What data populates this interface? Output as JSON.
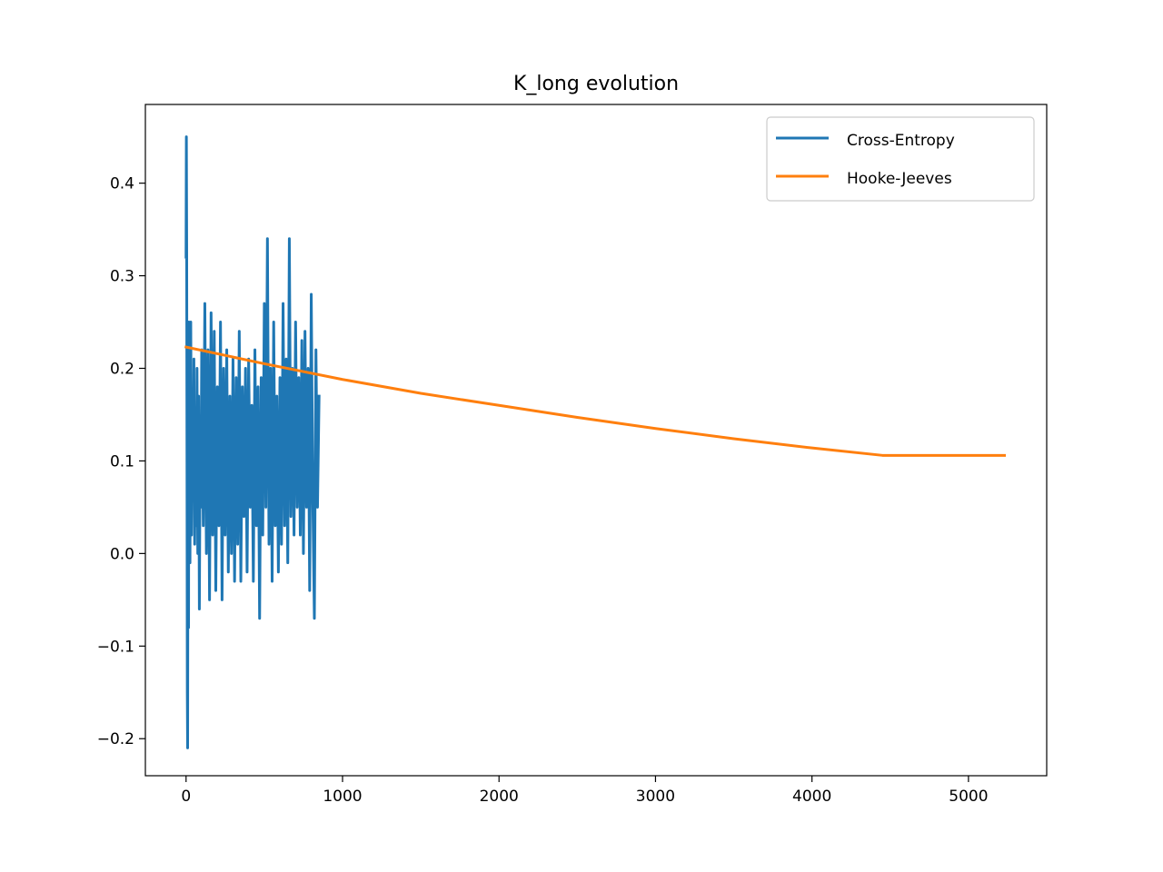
{
  "chart_data": {
    "type": "line",
    "title": "K_long evolution",
    "xlabel": "",
    "ylabel": "",
    "xlim": [
      -260,
      5500
    ],
    "ylim": [
      -0.24,
      0.485
    ],
    "x_ticks": [
      0,
      1000,
      2000,
      3000,
      4000,
      5000
    ],
    "y_ticks": [
      -0.2,
      -0.1,
      0.0,
      0.1,
      0.2,
      0.3,
      0.4
    ],
    "x_tick_labels": [
      "0",
      "1000",
      "2000",
      "3000",
      "4000",
      "5000"
    ],
    "y_tick_labels": [
      "−0.2",
      "−0.1",
      "0.0",
      "0.1",
      "0.2",
      "0.3",
      "0.4"
    ],
    "grid": false,
    "legend_position": "top-right",
    "series": [
      {
        "name": "Cross-Entropy",
        "color": "#1f77b4",
        "x": [
          0,
          2,
          4,
          6,
          8,
          10,
          12,
          14,
          16,
          18,
          20,
          25,
          30,
          35,
          40,
          45,
          50,
          55,
          60,
          65,
          70,
          75,
          80,
          85,
          90,
          95,
          100,
          110,
          120,
          130,
          140,
          150,
          160,
          170,
          180,
          190,
          200,
          210,
          220,
          230,
          240,
          250,
          260,
          270,
          280,
          290,
          300,
          310,
          320,
          330,
          340,
          350,
          360,
          370,
          380,
          390,
          400,
          410,
          420,
          430,
          440,
          450,
          460,
          470,
          480,
          490,
          500,
          510,
          520,
          530,
          540,
          550,
          560,
          570,
          580,
          590,
          600,
          610,
          620,
          630,
          640,
          650,
          660,
          670,
          680,
          690,
          700,
          710,
          720,
          730,
          740,
          750,
          760,
          770,
          780,
          790,
          800,
          810,
          820,
          830,
          840,
          850
        ],
        "y": [
          0.32,
          0.45,
          0.33,
          0.1,
          -0.15,
          -0.21,
          0.05,
          0.2,
          -0.08,
          0.25,
          0.1,
          -0.01,
          0.25,
          0.02,
          0.15,
          0.06,
          0.21,
          0.01,
          0.13,
          0.03,
          0.2,
          0.0,
          0.17,
          -0.06,
          0.12,
          0.05,
          0.22,
          0.03,
          0.27,
          0.0,
          0.22,
          -0.05,
          0.26,
          0.02,
          0.24,
          -0.04,
          0.18,
          0.03,
          0.25,
          -0.05,
          0.2,
          0.02,
          0.22,
          -0.02,
          0.17,
          0.0,
          0.21,
          -0.03,
          0.19,
          0.01,
          0.24,
          -0.03,
          0.18,
          0.04,
          0.2,
          -0.02,
          0.21,
          0.05,
          0.16,
          -0.03,
          0.22,
          0.03,
          0.18,
          -0.07,
          0.19,
          0.02,
          0.27,
          0.05,
          0.34,
          0.01,
          0.2,
          -0.03,
          0.25,
          0.03,
          0.17,
          -0.02,
          0.19,
          0.01,
          0.27,
          0.03,
          0.21,
          -0.01,
          0.34,
          0.04,
          0.2,
          0.02,
          0.25,
          0.05,
          0.19,
          0.02,
          0.23,
          0.0,
          0.24,
          0.05,
          0.2,
          -0.04,
          0.28,
          0.06,
          -0.07,
          0.22,
          0.05,
          0.17
        ]
      },
      {
        "name": "Hooke-Jeeves",
        "color": "#ff7f0e",
        "x": [
          0,
          500,
          1000,
          1500,
          2000,
          2500,
          3000,
          3500,
          4000,
          4450,
          5230
        ],
        "y": [
          0.223,
          0.205,
          0.188,
          0.173,
          0.16,
          0.147,
          0.135,
          0.124,
          0.114,
          0.106,
          0.106
        ]
      }
    ]
  }
}
